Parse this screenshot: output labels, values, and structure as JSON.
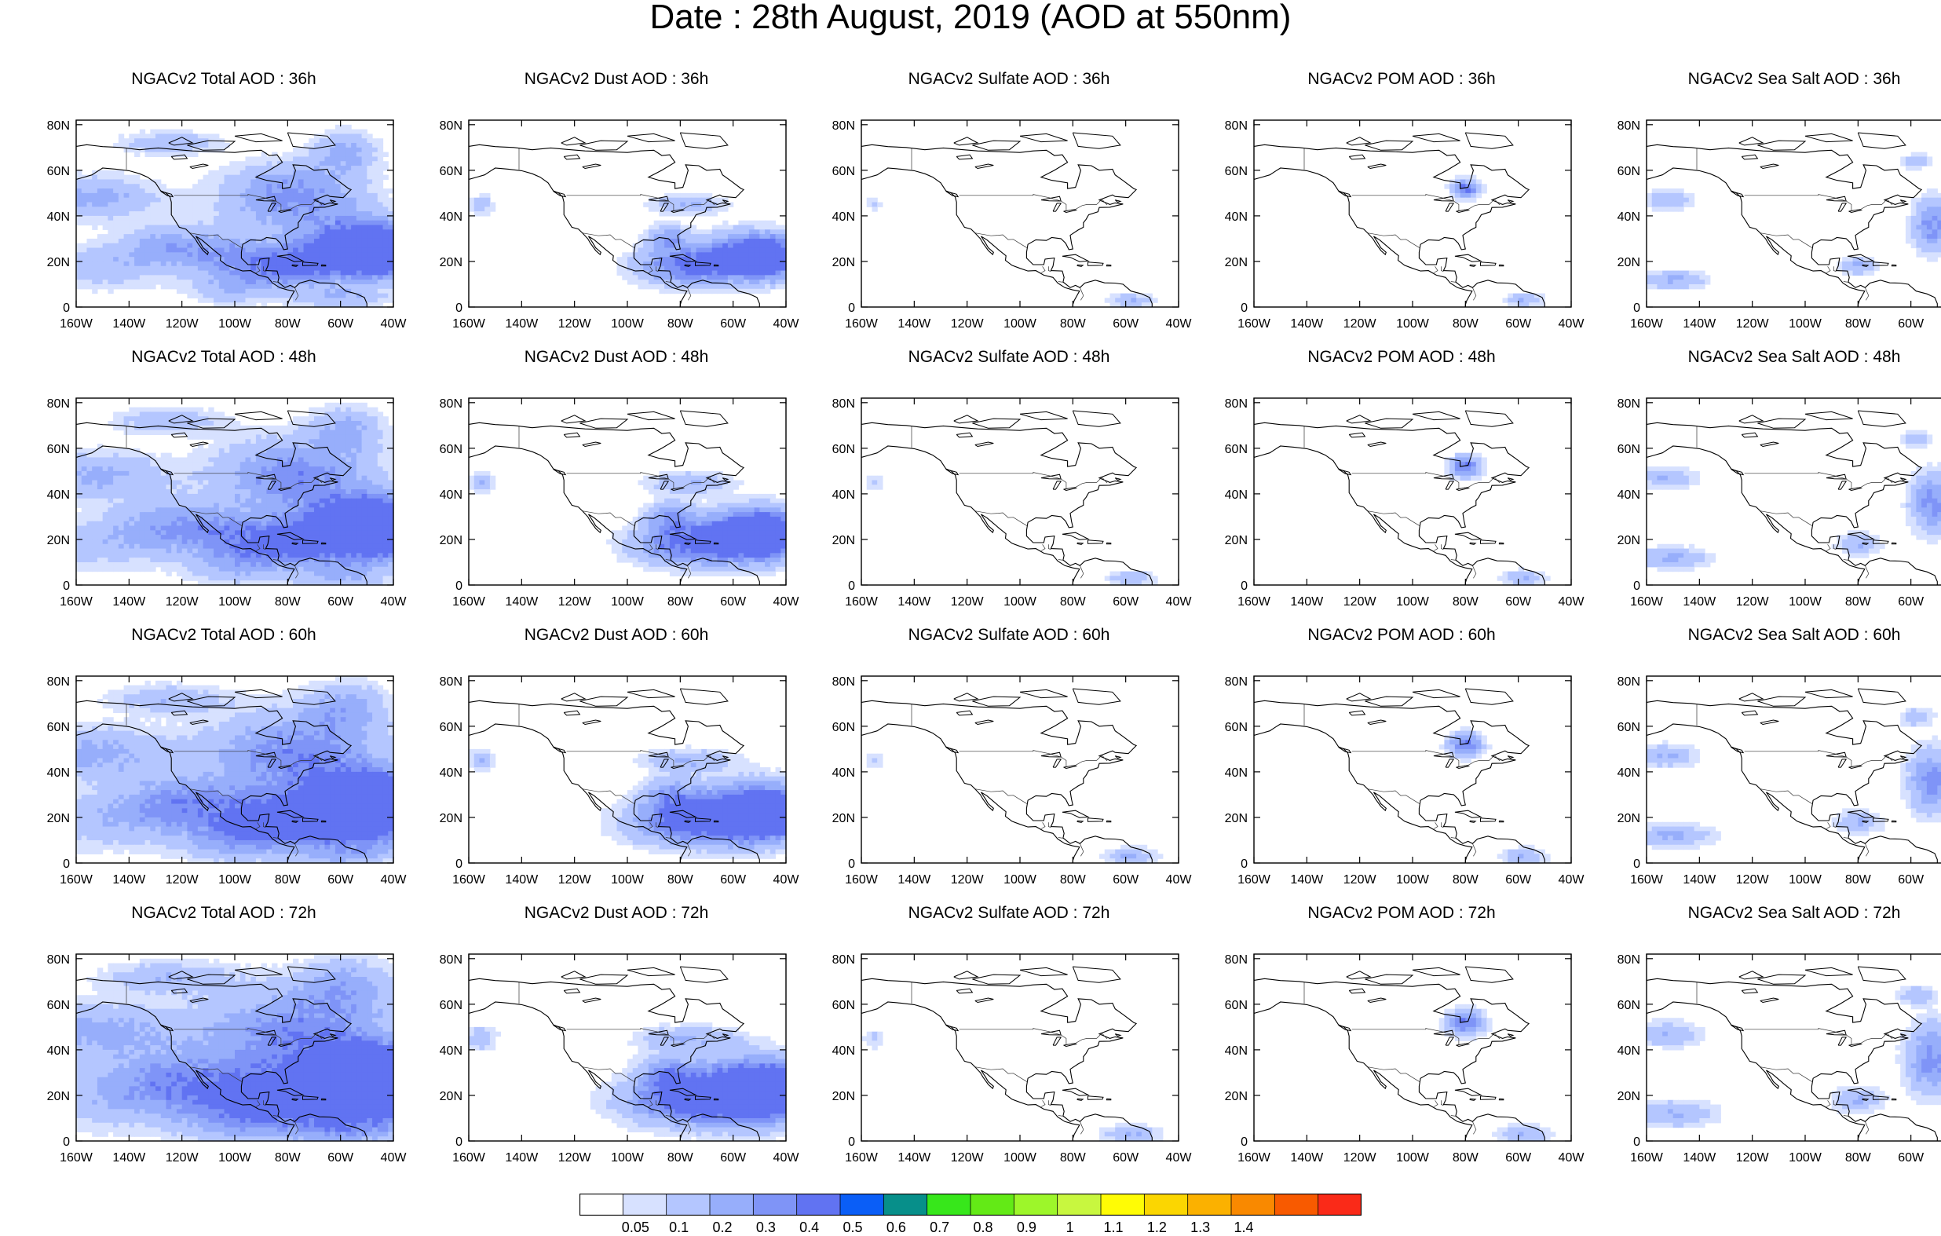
{
  "title": "Date : 28th August, 2019 (AOD at 550nm)",
  "x_ticks": [
    "160W",
    "140W",
    "120W",
    "100W",
    "80W",
    "60W",
    "40W"
  ],
  "y_ticks": [
    "80N",
    "60N",
    "40N",
    "20N",
    "0"
  ],
  "colorbar": {
    "labels": [
      "0.05",
      "0.1",
      "0.2",
      "0.3",
      "0.4",
      "0.5",
      "0.6",
      "0.7",
      "0.8",
      "0.9",
      "1",
      "1.1",
      "1.2",
      "1.3",
      "1.4"
    ],
    "colors": [
      "#ffffff",
      "#d7e1ff",
      "#b4c6ff",
      "#97aefb",
      "#7f94f7",
      "#6173f2",
      "#0a5ef7",
      "#078f8a",
      "#37e71b",
      "#63ea16",
      "#9df62a",
      "#c8f73f",
      "#fffc05",
      "#fbd601",
      "#fbb100",
      "#f98900",
      "#f85a00",
      "#fa2a18"
    ]
  },
  "panels": [
    {
      "title": "NGACv2 Total AOD : 36h",
      "species": "total",
      "hour": 36
    },
    {
      "title": "NGACv2 Dust AOD : 36h",
      "species": "dust",
      "hour": 36
    },
    {
      "title": "NGACv2 Sulfate AOD : 36h",
      "species": "sulfate",
      "hour": 36
    },
    {
      "title": "NGACv2 POM AOD : 36h",
      "species": "pom",
      "hour": 36
    },
    {
      "title": "NGACv2 Sea Salt AOD : 36h",
      "species": "seasalt",
      "hour": 36
    },
    {
      "title": "NGACv2 Total AOD : 48h",
      "species": "total",
      "hour": 48
    },
    {
      "title": "NGACv2 Dust AOD : 48h",
      "species": "dust",
      "hour": 48
    },
    {
      "title": "NGACv2 Sulfate AOD : 48h",
      "species": "sulfate",
      "hour": 48
    },
    {
      "title": "NGACv2 POM AOD : 48h",
      "species": "pom",
      "hour": 48
    },
    {
      "title": "NGACv2 Sea Salt AOD : 48h",
      "species": "seasalt",
      "hour": 48
    },
    {
      "title": "NGACv2 Total AOD : 60h",
      "species": "total",
      "hour": 60
    },
    {
      "title": "NGACv2 Dust AOD : 60h",
      "species": "dust",
      "hour": 60
    },
    {
      "title": "NGACv2 Sulfate AOD : 60h",
      "species": "sulfate",
      "hour": 60
    },
    {
      "title": "NGACv2 POM AOD : 60h",
      "species": "pom",
      "hour": 60
    },
    {
      "title": "NGACv2 Sea Salt AOD : 60h",
      "species": "seasalt",
      "hour": 60
    },
    {
      "title": "NGACv2 Total AOD : 72h",
      "species": "total",
      "hour": 72
    },
    {
      "title": "NGACv2 Dust AOD : 72h",
      "species": "dust",
      "hour": 72
    },
    {
      "title": "NGACv2 Sulfate AOD : 72h",
      "species": "sulfate",
      "hour": 72
    },
    {
      "title": "NGACv2 POM AOD : 72h",
      "species": "pom",
      "hour": 72
    },
    {
      "title": "NGACv2 Sea Salt  AOD : 72h",
      "species": "seasalt",
      "hour": 72
    }
  ]
}
